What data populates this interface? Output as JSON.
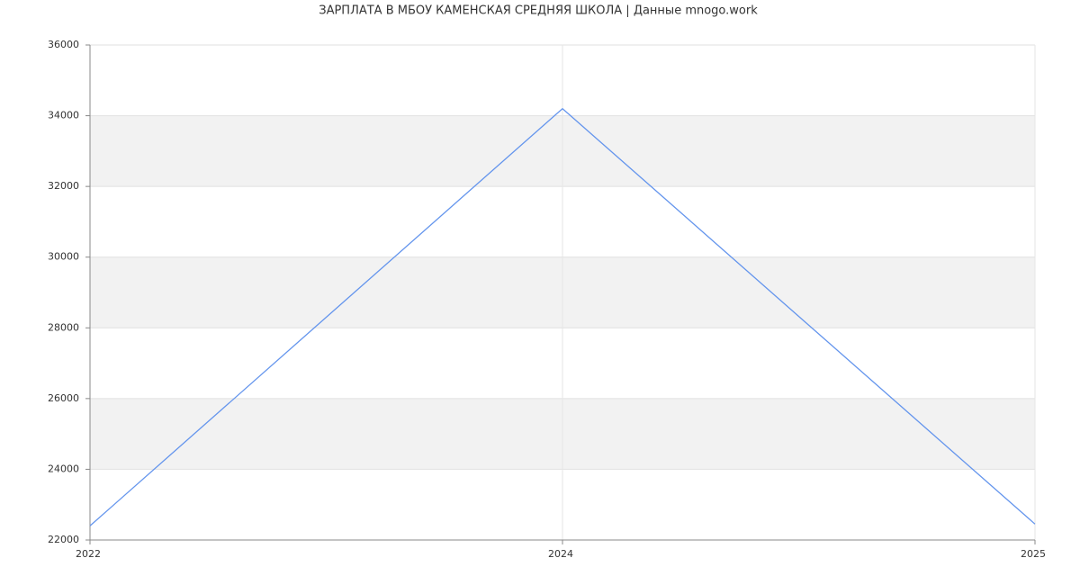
{
  "chart_data": {
    "type": "line",
    "title": "ЗАРПЛАТА В МБОУ КАМЕНСКАЯ СРЕДНЯЯ ШКОЛА | Данные mnogo.work",
    "categories": [
      "2022",
      "2024",
      "2025"
    ],
    "series": [
      {
        "name": null,
        "color": "#6495ed",
        "values": [
          22400,
          34200,
          22450
        ]
      }
    ],
    "ylim": [
      22000,
      36000
    ],
    "yticks": [
      22000,
      24000,
      26000,
      28000,
      30000,
      32000,
      34000,
      36000
    ],
    "grid": true
  }
}
